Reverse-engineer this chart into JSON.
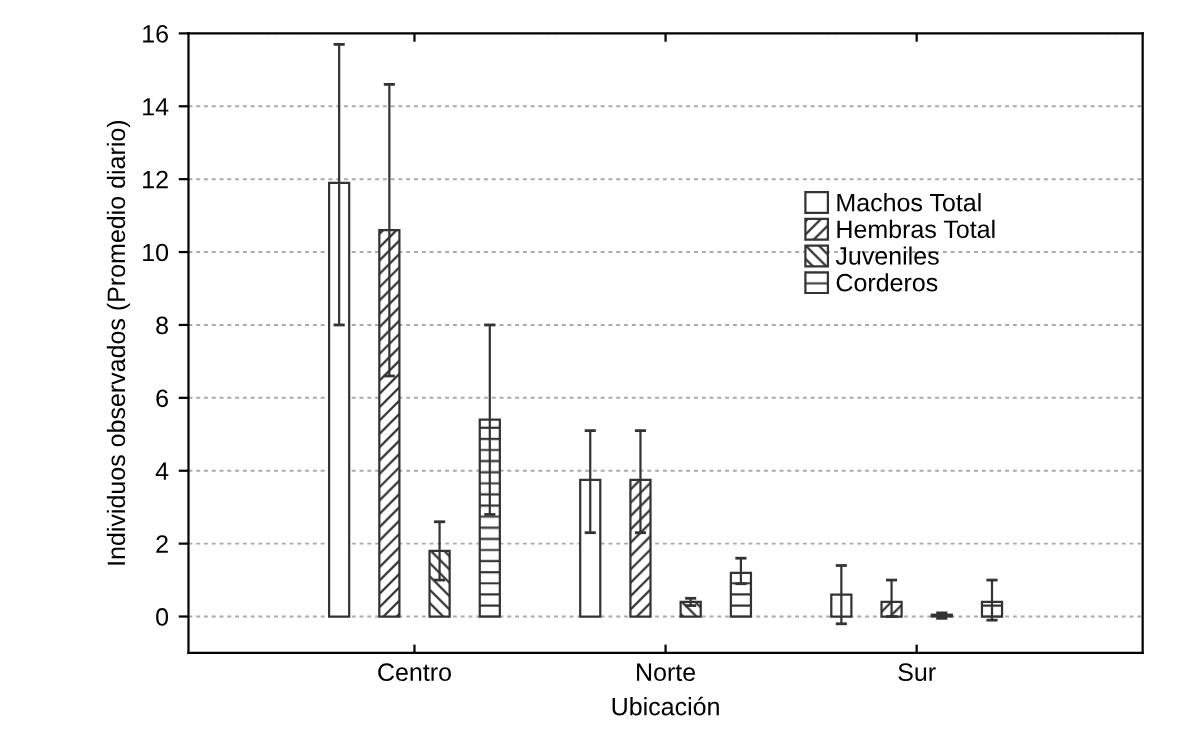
{
  "chart_data": {
    "type": "bar",
    "xlabel": "Ubicación",
    "ylabel": "Individuos observados (Promedio diario)",
    "categories": [
      "Centro",
      "Norte",
      "Sur"
    ],
    "series": [
      {
        "name": "Machos Total",
        "color": "#ffffff",
        "values": [
          11.9,
          3.75,
          0.6
        ],
        "errors": [
          [
            8.0,
            15.7
          ],
          [
            2.3,
            5.1
          ],
          [
            -0.2,
            1.4
          ]
        ]
      },
      {
        "name": "Hembras Total",
        "color": "#333333",
        "values": [
          10.6,
          3.75,
          0.4
        ],
        "errors": [
          [
            6.6,
            14.6
          ],
          [
            2.3,
            5.1
          ],
          [
            0.0,
            1.0
          ]
        ]
      },
      {
        "name": "Juveniles",
        "color": "#333333",
        "values": [
          1.8,
          0.4,
          0.05
        ],
        "errors": [
          [
            1.0,
            2.6
          ],
          [
            0.3,
            0.5
          ],
          [
            -0.05,
            0.1
          ]
        ]
      },
      {
        "name": "Corderos",
        "color": "#333333",
        "values": [
          5.4,
          1.2,
          0.4
        ],
        "errors": [
          [
            2.8,
            8.0
          ],
          [
            0.9,
            1.6
          ],
          [
            -0.1,
            1.0
          ]
        ]
      }
    ],
    "ylim": [
      -1,
      16
    ],
    "yticks": [
      0,
      2,
      4,
      6,
      8,
      10,
      12,
      14,
      16
    ],
    "grid": "y",
    "legend": "top right"
  }
}
